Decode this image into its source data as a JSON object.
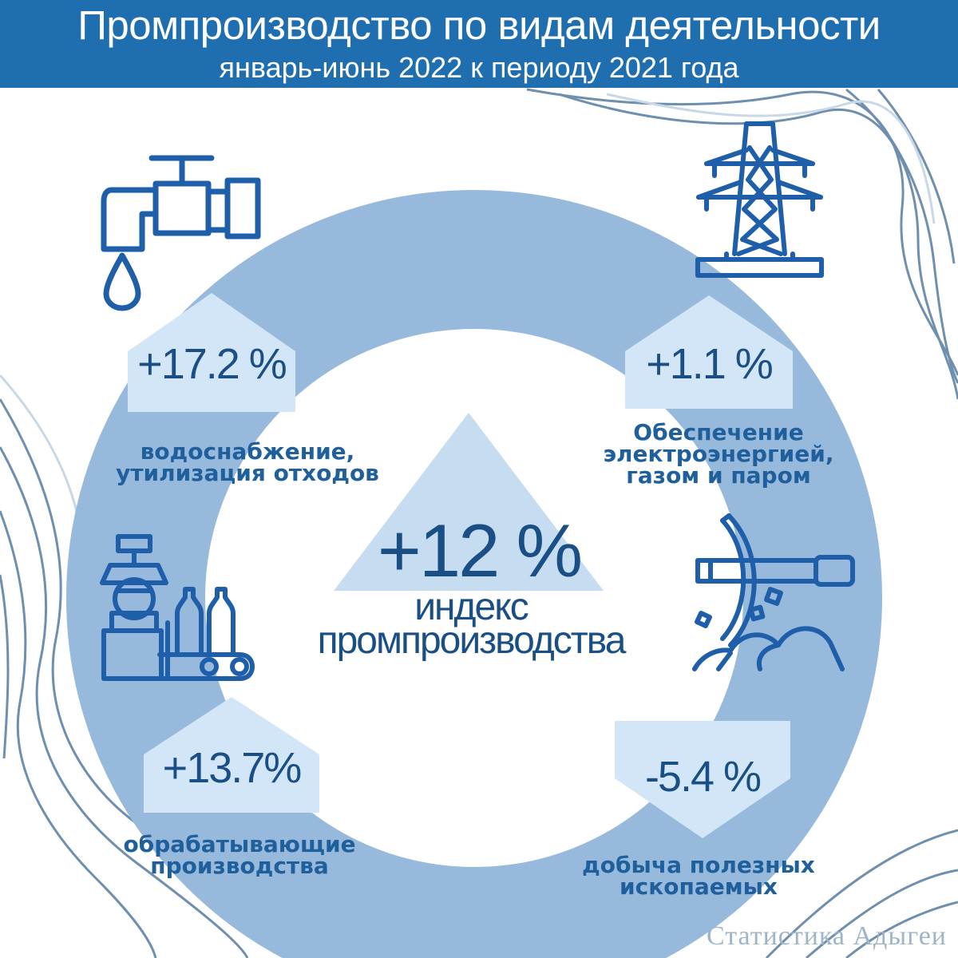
{
  "header": {
    "title": "Промпроизводство по видам деятельности",
    "subtitle": "январь-июнь 2022 к периоду 2021 года"
  },
  "center": {
    "value": "+12 %",
    "label_line1": "индекс",
    "label_line2": "промпроизводства"
  },
  "segments": [
    {
      "value": "+17.2 %",
      "label_line1": "водоснабжение,",
      "label_line2": "утилизация отходов",
      "icon": "water-tap-icon"
    },
    {
      "value": "+1.1 %",
      "label_line1": "Обеспечение",
      "label_line2": "электроэнергией,",
      "label_line3": "газом и паром",
      "icon": "power-tower-icon"
    },
    {
      "value": "+13.7%",
      "label_line1": "обрабатывающие",
      "label_line2": "производства",
      "icon": "manufacturing-icon"
    },
    {
      "value": "-5.4 %",
      "label_line1": "добыча полезных",
      "label_line2": "ископаемых",
      "icon": "pickaxe-mining-icon"
    }
  ],
  "source": "Статистика Адыгеи",
  "chart_data": {
    "type": "table",
    "title": "Промпроизводство по видам деятельности",
    "subtitle": "январь-июнь 2022 к периоду 2021 года",
    "categories": [
      "водоснабжение, утилизация отходов",
      "Обеспечение электроэнергией, газом и паром",
      "обрабатывающие производства",
      "добыча полезных ископаемых",
      "индекс промпроизводства"
    ],
    "values": [
      17.2,
      1.1,
      13.7,
      -5.4,
      12
    ],
    "unit": "%"
  },
  "colors": {
    "header": "#1f6fb0",
    "ring": "#97b9dc",
    "badge": "#d3e6f7",
    "text": "#1a4f86",
    "icon": "#1f5ea8"
  }
}
